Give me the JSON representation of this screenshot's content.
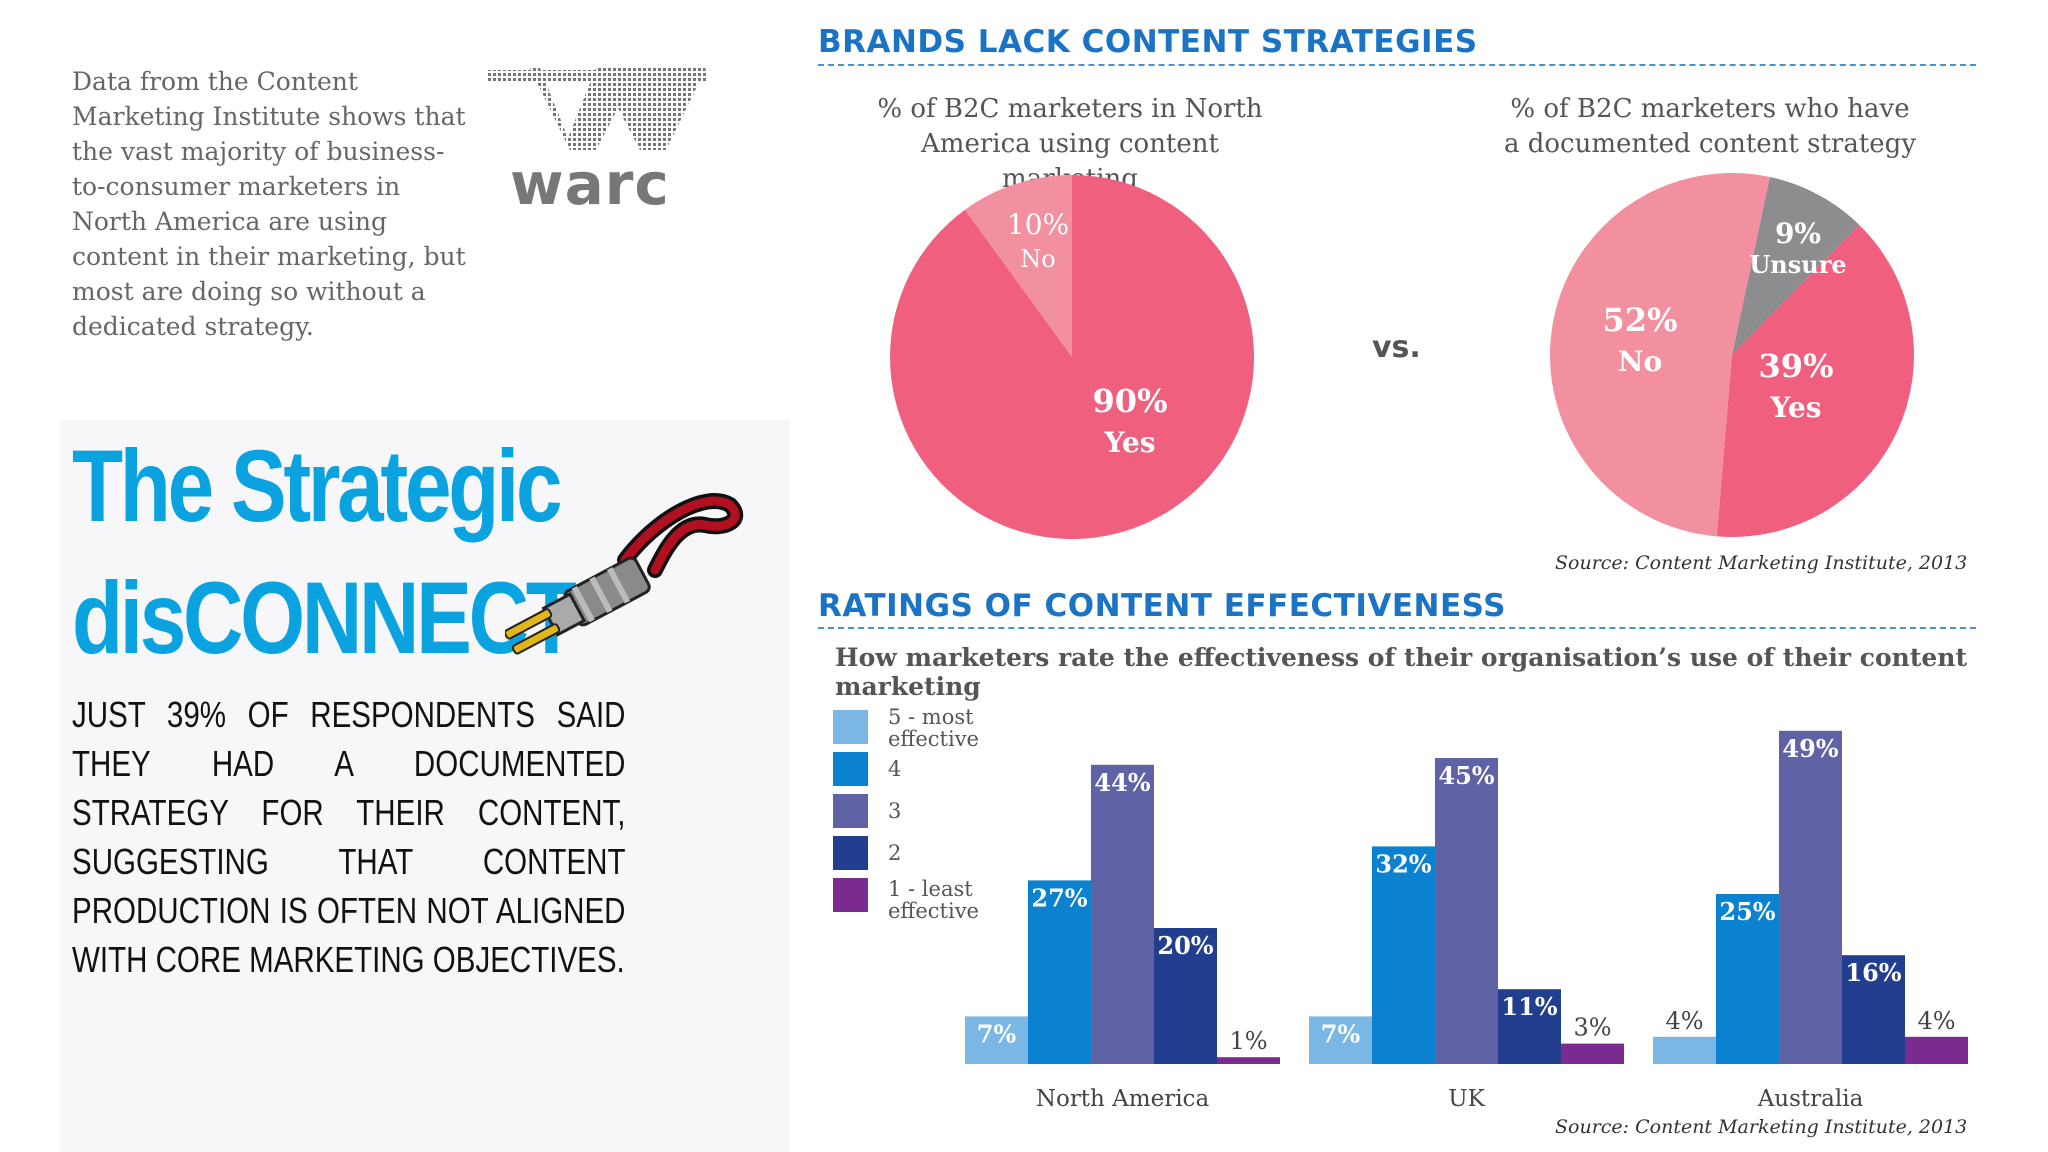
{
  "intro_text": "Data from the Content Marketing Institute shows that the vast majority of business-to-consumer marketers in North America are using content in their marketing, but most are doing so without a dedicated strategy.",
  "logo_text": "warc",
  "headline": {
    "line1": "The Strategic",
    "line2": "disCONNECT"
  },
  "summary": "Just 39% of respondents said they had a documented strategy for their content, suggesting that content production is often not aligned with core marketing objectives.",
  "section1": {
    "title": "BRANDS LACK CONTENT STRATEGIES"
  },
  "section2": {
    "title": "RATINGS OF CONTENT EFFECTIVENESS"
  },
  "vs_label": "vs.",
  "source1": "Source: Content Marketing Institute, 2013",
  "source2": "Source: Content Marketing Institute, 2013",
  "colors": {
    "accent": "#0aa3e0",
    "heading": "#1a73c4",
    "pie_main": "#f0607e",
    "pie_light": "#f2909f",
    "pie_grey": "#8d8d8f",
    "lvl5": "#7ab7e5",
    "lvl4": "#0a82cf",
    "lvl3": "#5f63a6",
    "lvl2": "#223f8f",
    "lvl1": "#7b2b90"
  },
  "chart_data": [
    {
      "type": "pie",
      "title": "% of B2C marketers in North America using content marketing",
      "slices": [
        {
          "label": "Yes",
          "value": 90,
          "text": "90%"
        },
        {
          "label": "No",
          "value": 10,
          "text": "10%"
        }
      ]
    },
    {
      "type": "pie",
      "title": "% of B2C marketers who have a documented content strategy",
      "slices": [
        {
          "label": "Yes",
          "value": 39,
          "text": "39%"
        },
        {
          "label": "No",
          "value": 52,
          "text": "52%"
        },
        {
          "label": "Unsure",
          "value": 9,
          "text": "9%"
        }
      ]
    },
    {
      "type": "bar",
      "title": "RATINGS OF CONTENT EFFECTIVENESS",
      "subtitle": "How marketers rate the effectiveness of their organisation’s use of their content marketing",
      "categories": [
        "North America",
        "UK",
        "Australia"
      ],
      "series": [
        {
          "name": "5 - most effective",
          "values": [
            7,
            7,
            4
          ]
        },
        {
          "name": "4",
          "values": [
            27,
            32,
            25
          ]
        },
        {
          "name": "3",
          "values": [
            44,
            45,
            49
          ]
        },
        {
          "name": "2",
          "values": [
            20,
            11,
            16
          ]
        },
        {
          "name": "1 - least effective",
          "values": [
            1,
            3,
            4
          ]
        }
      ],
      "ylim": [
        0,
        50
      ]
    }
  ]
}
